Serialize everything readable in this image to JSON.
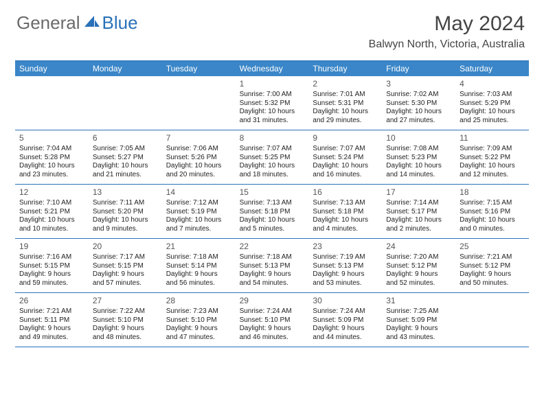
{
  "brand": {
    "textA": "General",
    "textB": "Blue"
  },
  "colors": {
    "header_bg": "#3a86c8",
    "border": "#2971b8",
    "text_gray": "#6a6a6a",
    "blue": "#2971b8",
    "body_text": "#222"
  },
  "title": {
    "month": "May 2024",
    "location": "Balwyn North, Victoria, Australia"
  },
  "daynames": [
    "Sunday",
    "Monday",
    "Tuesday",
    "Wednesday",
    "Thursday",
    "Friday",
    "Saturday"
  ],
  "weeks": [
    [
      {
        "empty": true
      },
      {
        "empty": true
      },
      {
        "empty": true
      },
      {
        "day": "1",
        "sunrise": "7:00 AM",
        "sunset": "5:32 PM",
        "daylight_a": "Daylight: 10 hours",
        "daylight_b": "and 31 minutes."
      },
      {
        "day": "2",
        "sunrise": "7:01 AM",
        "sunset": "5:31 PM",
        "daylight_a": "Daylight: 10 hours",
        "daylight_b": "and 29 minutes."
      },
      {
        "day": "3",
        "sunrise": "7:02 AM",
        "sunset": "5:30 PM",
        "daylight_a": "Daylight: 10 hours",
        "daylight_b": "and 27 minutes."
      },
      {
        "day": "4",
        "sunrise": "7:03 AM",
        "sunset": "5:29 PM",
        "daylight_a": "Daylight: 10 hours",
        "daylight_b": "and 25 minutes."
      }
    ],
    [
      {
        "day": "5",
        "sunrise": "7:04 AM",
        "sunset": "5:28 PM",
        "daylight_a": "Daylight: 10 hours",
        "daylight_b": "and 23 minutes."
      },
      {
        "day": "6",
        "sunrise": "7:05 AM",
        "sunset": "5:27 PM",
        "daylight_a": "Daylight: 10 hours",
        "daylight_b": "and 21 minutes."
      },
      {
        "day": "7",
        "sunrise": "7:06 AM",
        "sunset": "5:26 PM",
        "daylight_a": "Daylight: 10 hours",
        "daylight_b": "and 20 minutes."
      },
      {
        "day": "8",
        "sunrise": "7:07 AM",
        "sunset": "5:25 PM",
        "daylight_a": "Daylight: 10 hours",
        "daylight_b": "and 18 minutes."
      },
      {
        "day": "9",
        "sunrise": "7:07 AM",
        "sunset": "5:24 PM",
        "daylight_a": "Daylight: 10 hours",
        "daylight_b": "and 16 minutes."
      },
      {
        "day": "10",
        "sunrise": "7:08 AM",
        "sunset": "5:23 PM",
        "daylight_a": "Daylight: 10 hours",
        "daylight_b": "and 14 minutes."
      },
      {
        "day": "11",
        "sunrise": "7:09 AM",
        "sunset": "5:22 PM",
        "daylight_a": "Daylight: 10 hours",
        "daylight_b": "and 12 minutes."
      }
    ],
    [
      {
        "day": "12",
        "sunrise": "7:10 AM",
        "sunset": "5:21 PM",
        "daylight_a": "Daylight: 10 hours",
        "daylight_b": "and 10 minutes."
      },
      {
        "day": "13",
        "sunrise": "7:11 AM",
        "sunset": "5:20 PM",
        "daylight_a": "Daylight: 10 hours",
        "daylight_b": "and 9 minutes."
      },
      {
        "day": "14",
        "sunrise": "7:12 AM",
        "sunset": "5:19 PM",
        "daylight_a": "Daylight: 10 hours",
        "daylight_b": "and 7 minutes."
      },
      {
        "day": "15",
        "sunrise": "7:13 AM",
        "sunset": "5:18 PM",
        "daylight_a": "Daylight: 10 hours",
        "daylight_b": "and 5 minutes."
      },
      {
        "day": "16",
        "sunrise": "7:13 AM",
        "sunset": "5:18 PM",
        "daylight_a": "Daylight: 10 hours",
        "daylight_b": "and 4 minutes."
      },
      {
        "day": "17",
        "sunrise": "7:14 AM",
        "sunset": "5:17 PM",
        "daylight_a": "Daylight: 10 hours",
        "daylight_b": "and 2 minutes."
      },
      {
        "day": "18",
        "sunrise": "7:15 AM",
        "sunset": "5:16 PM",
        "daylight_a": "Daylight: 10 hours",
        "daylight_b": "and 0 minutes."
      }
    ],
    [
      {
        "day": "19",
        "sunrise": "7:16 AM",
        "sunset": "5:15 PM",
        "daylight_a": "Daylight: 9 hours",
        "daylight_b": "and 59 minutes."
      },
      {
        "day": "20",
        "sunrise": "7:17 AM",
        "sunset": "5:15 PM",
        "daylight_a": "Daylight: 9 hours",
        "daylight_b": "and 57 minutes."
      },
      {
        "day": "21",
        "sunrise": "7:18 AM",
        "sunset": "5:14 PM",
        "daylight_a": "Daylight: 9 hours",
        "daylight_b": "and 56 minutes."
      },
      {
        "day": "22",
        "sunrise": "7:18 AM",
        "sunset": "5:13 PM",
        "daylight_a": "Daylight: 9 hours",
        "daylight_b": "and 54 minutes."
      },
      {
        "day": "23",
        "sunrise": "7:19 AM",
        "sunset": "5:13 PM",
        "daylight_a": "Daylight: 9 hours",
        "daylight_b": "and 53 minutes."
      },
      {
        "day": "24",
        "sunrise": "7:20 AM",
        "sunset": "5:12 PM",
        "daylight_a": "Daylight: 9 hours",
        "daylight_b": "and 52 minutes."
      },
      {
        "day": "25",
        "sunrise": "7:21 AM",
        "sunset": "5:12 PM",
        "daylight_a": "Daylight: 9 hours",
        "daylight_b": "and 50 minutes."
      }
    ],
    [
      {
        "day": "26",
        "sunrise": "7:21 AM",
        "sunset": "5:11 PM",
        "daylight_a": "Daylight: 9 hours",
        "daylight_b": "and 49 minutes."
      },
      {
        "day": "27",
        "sunrise": "7:22 AM",
        "sunset": "5:10 PM",
        "daylight_a": "Daylight: 9 hours",
        "daylight_b": "and 48 minutes."
      },
      {
        "day": "28",
        "sunrise": "7:23 AM",
        "sunset": "5:10 PM",
        "daylight_a": "Daylight: 9 hours",
        "daylight_b": "and 47 minutes."
      },
      {
        "day": "29",
        "sunrise": "7:24 AM",
        "sunset": "5:10 PM",
        "daylight_a": "Daylight: 9 hours",
        "daylight_b": "and 46 minutes."
      },
      {
        "day": "30",
        "sunrise": "7:24 AM",
        "sunset": "5:09 PM",
        "daylight_a": "Daylight: 9 hours",
        "daylight_b": "and 44 minutes."
      },
      {
        "day": "31",
        "sunrise": "7:25 AM",
        "sunset": "5:09 PM",
        "daylight_a": "Daylight: 9 hours",
        "daylight_b": "and 43 minutes."
      },
      {
        "empty": true
      }
    ]
  ],
  "labels": {
    "sunrise_prefix": "Sunrise: ",
    "sunset_prefix": "Sunset: "
  }
}
